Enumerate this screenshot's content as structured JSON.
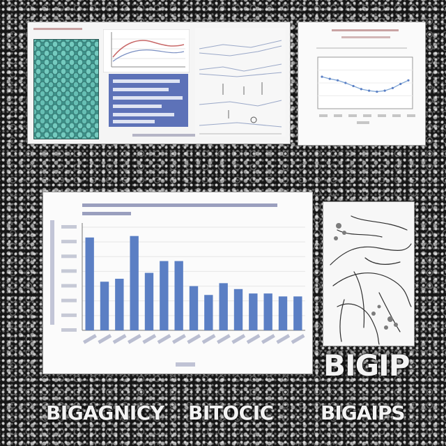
{
  "captions": {
    "big": "BIGIP",
    "bottom_left": "BIGAGNICY",
    "bottom_middle": "BITOCIC",
    "bottom_right": "BIGAIPS"
  },
  "colors": {
    "background": "#141414",
    "bar": "#5b7fc4",
    "mosaic": "#3c8f87",
    "line": "#7fa6d6"
  },
  "chart_data": {
    "type": "bar",
    "values": [
      6.3,
      3.3,
      3.5,
      6.4,
      3.9,
      4.7,
      4.7,
      3.0,
      2.4,
      3.2,
      2.8,
      2.5,
      2.5,
      2.3,
      2.3
    ],
    "ylim": [
      0,
      7
    ]
  },
  "line_chart": {
    "type": "line",
    "values": [
      0.62,
      0.58,
      0.55,
      0.5,
      0.44,
      0.38,
      0.35,
      0.33,
      0.35,
      0.4,
      0.48,
      0.55
    ],
    "ylim": [
      0,
      1
    ]
  }
}
